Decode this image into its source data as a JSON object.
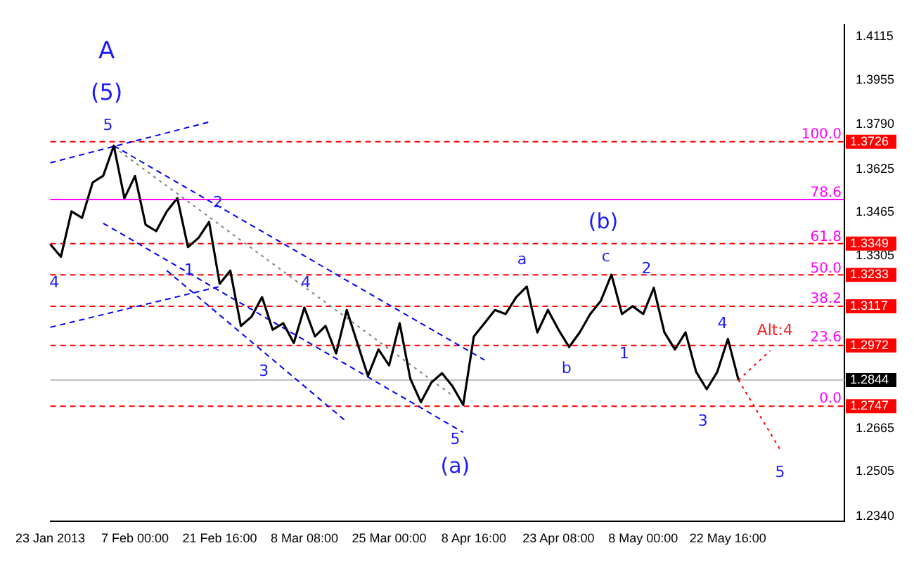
{
  "chart_data": {
    "type": "line",
    "ylim": [
      1.232,
      1.416
    ],
    "categories": [
      "23 Jan 2013",
      null,
      null,
      null,
      null,
      null,
      null,
      null,
      "7 Feb 00:00",
      null,
      null,
      null,
      null,
      null,
      null,
      null,
      "21 Feb 16:00",
      null,
      null,
      null,
      null,
      null,
      null,
      null,
      "8 Mar 08:00",
      null,
      null,
      null,
      null,
      null,
      null,
      null,
      "25 Mar 00:00",
      null,
      null,
      null,
      null,
      null,
      null,
      null,
      "8 Apr 16:00",
      null,
      null,
      null,
      null,
      null,
      null,
      null,
      "23 Apr 08:00",
      null,
      null,
      null,
      null,
      null,
      null,
      null,
      "8 May 00:00",
      null,
      null,
      null,
      null,
      null,
      null,
      null,
      "22 May 16:00",
      null,
      null,
      null,
      null,
      null,
      null,
      null,
      null,
      null,
      null,
      null
    ],
    "yticks": [
      {
        "value": 1.234,
        "label": "1.2340"
      },
      1.2505,
      1.2665,
      1.3305,
      1.3465,
      1.3625,
      {
        "value": 1.379,
        "label": "1.3790"
      },
      1.3955,
      1.4115
    ],
    "grid": false,
    "legend": false,
    "marker": "none",
    "series": [
      {
        "color": "#000000",
        "line_style": "solid",
        "values": [
          1.3346,
          1.33,
          1.3468,
          1.3444,
          1.3575,
          1.36,
          1.3711,
          1.3517,
          1.3599,
          1.3419,
          1.3395,
          1.3468,
          1.3517,
          1.3336,
          1.337,
          1.3429,
          1.32,
          1.3249,
          1.3044,
          1.3078,
          1.3151,
          1.303,
          1.3054,
          1.2981,
          1.3112,
          1.3005,
          1.3044,
          1.2942,
          1.3103,
          1.2981,
          1.2859,
          1.2957,
          1.2898,
          1.3054,
          1.2849,
          1.2762,
          1.2835,
          1.2869,
          1.282,
          1.2752,
          1.3005,
          1.3054,
          1.3103,
          1.3088,
          1.315,
          1.319,
          1.302,
          1.3103,
          1.303,
          1.2966,
          1.302,
          1.3088,
          1.3137,
          1.3234,
          1.3088,
          1.3117,
          1.3088,
          1.3185,
          1.302,
          1.2957,
          1.302,
          1.2874,
          1.281,
          1.2874,
          1.2996,
          1.2844,
          null,
          null,
          null,
          null,
          null,
          null,
          null,
          null,
          null,
          null
        ]
      },
      {
        "color": "#0000ff",
        "line_style": "dashed",
        "values": [
          1.3648,
          null,
          null,
          null,
          null,
          null,
          null,
          null,
          null,
          null,
          null,
          null,
          null,
          null,
          null,
          1.3799,
          null,
          null,
          null,
          null,
          null,
          null,
          null,
          null,
          null,
          null,
          null,
          null,
          null,
          null,
          null,
          null,
          null,
          null,
          null,
          null,
          null,
          null,
          null,
          null,
          null,
          null,
          null,
          null,
          null,
          null,
          null,
          null,
          null,
          null,
          null,
          null,
          null,
          null,
          null,
          null,
          null,
          null,
          null,
          null,
          null,
          null,
          null,
          null,
          null,
          null,
          null,
          null,
          null,
          null,
          null,
          null,
          null,
          null,
          null,
          null
        ]
      },
      {
        "color": "#0000ff",
        "line_style": "dashed",
        "values": [
          null,
          null,
          null,
          null,
          null,
          null,
          1.3711,
          null,
          null,
          null,
          null,
          null,
          null,
          null,
          null,
          null,
          null,
          null,
          null,
          null,
          null,
          null,
          null,
          null,
          null,
          null,
          null,
          null,
          null,
          null,
          null,
          null,
          null,
          null,
          null,
          null,
          null,
          null,
          null,
          null,
          null,
          1.2918,
          null,
          null,
          null,
          null,
          null,
          null,
          null,
          null,
          null,
          null,
          null,
          null,
          null,
          null,
          null,
          null,
          null,
          null,
          null,
          null,
          null,
          null,
          null,
          null,
          null,
          null,
          null,
          null,
          null,
          null,
          null,
          null,
          null,
          null
        ]
      },
      {
        "color": "#0000ff",
        "line_style": "dashed",
        "values": [
          null,
          null,
          null,
          null,
          null,
          1.3424,
          null,
          null,
          null,
          null,
          null,
          null,
          null,
          null,
          null,
          null,
          null,
          null,
          null,
          null,
          null,
          null,
          null,
          null,
          null,
          null,
          null,
          null,
          null,
          null,
          null,
          null,
          null,
          null,
          null,
          null,
          null,
          null,
          null,
          1.265,
          null,
          null,
          null,
          null,
          null,
          null,
          null,
          null,
          null,
          null,
          null,
          null,
          null,
          null,
          null,
          null,
          null,
          null,
          null,
          null,
          null,
          null,
          null,
          null,
          null,
          null,
          null,
          null,
          null,
          null,
          null,
          null,
          null,
          null,
          null,
          null
        ]
      },
      {
        "color": "#0000ff",
        "line_style": "dashed",
        "values": [
          1.3039,
          null,
          null,
          null,
          null,
          null,
          null,
          null,
          null,
          null,
          null,
          null,
          null,
          null,
          null,
          null,
          1.319,
          null,
          null,
          null,
          null,
          null,
          null,
          null,
          null,
          null,
          null,
          null,
          null,
          null,
          null,
          null,
          null,
          null,
          null,
          null,
          null,
          null,
          null,
          null,
          null,
          null,
          null,
          null,
          null,
          null,
          null,
          null,
          null,
          null,
          null,
          null,
          null,
          null,
          null,
          null,
          null,
          null,
          null,
          null,
          null,
          null,
          null,
          null,
          null,
          null,
          null,
          null,
          null,
          null,
          null,
          null,
          null,
          null,
          null,
          null
        ]
      },
      {
        "color": "#0000ff",
        "line_style": "dashed",
        "values": [
          null,
          null,
          null,
          null,
          null,
          null,
          null,
          null,
          null,
          null,
          null,
          1.3249,
          null,
          null,
          null,
          null,
          null,
          null,
          null,
          null,
          null,
          null,
          null,
          null,
          null,
          null,
          null,
          null,
          1.2689,
          null,
          null,
          null,
          null,
          null,
          null,
          null,
          null,
          null,
          null,
          null,
          null,
          null,
          null,
          null,
          null,
          null,
          null,
          null,
          null,
          null,
          null,
          null,
          null,
          null,
          null,
          null,
          null,
          null,
          null,
          null,
          null,
          null,
          null,
          null,
          null,
          null,
          null,
          null,
          null,
          null,
          null,
          null,
          null,
          null,
          null,
          null
        ]
      },
      {
        "color": "#808080",
        "line_style": "dotted",
        "values": [
          null,
          null,
          null,
          null,
          null,
          null,
          1.3706,
          null,
          null,
          null,
          null,
          null,
          null,
          null,
          null,
          null,
          null,
          null,
          null,
          null,
          null,
          null,
          null,
          null,
          null,
          null,
          null,
          null,
          null,
          null,
          null,
          null,
          null,
          null,
          null,
          null,
          null,
          null,
          1.2786,
          null,
          null,
          null,
          null,
          null,
          null,
          null,
          null,
          null,
          null,
          null,
          null,
          null,
          null,
          null,
          null,
          null,
          null,
          null,
          null,
          null,
          null,
          null,
          null,
          null,
          null,
          null,
          null,
          null,
          null,
          null,
          null,
          null,
          null,
          null,
          null,
          null
        ]
      },
      {
        "color": "#ff0000",
        "line_style": "dotted",
        "values": [
          null,
          null,
          null,
          null,
          null,
          null,
          null,
          null,
          null,
          null,
          null,
          null,
          null,
          null,
          null,
          null,
          null,
          null,
          null,
          null,
          null,
          null,
          null,
          null,
          null,
          null,
          null,
          null,
          null,
          null,
          null,
          null,
          null,
          null,
          null,
          null,
          null,
          null,
          null,
          null,
          null,
          null,
          null,
          null,
          null,
          null,
          null,
          null,
          null,
          null,
          null,
          null,
          null,
          null,
          null,
          null,
          null,
          null,
          null,
          null,
          null,
          null,
          null,
          null,
          null,
          1.2844,
          null,
          null,
          1.2952,
          null,
          null,
          null,
          null,
          null,
          null,
          null
        ]
      },
      {
        "color": "#ff0000",
        "line_style": "dotted",
        "values": [
          null,
          null,
          null,
          null,
          null,
          null,
          null,
          null,
          null,
          null,
          null,
          null,
          null,
          null,
          null,
          null,
          null,
          null,
          null,
          null,
          null,
          null,
          null,
          null,
          null,
          null,
          null,
          null,
          null,
          null,
          null,
          null,
          null,
          null,
          null,
          null,
          null,
          null,
          null,
          null,
          null,
          null,
          null,
          null,
          null,
          null,
          null,
          null,
          null,
          null,
          null,
          null,
          null,
          null,
          null,
          null,
          null,
          null,
          null,
          null,
          null,
          null,
          null,
          null,
          null,
          1.2844,
          null,
          null,
          null,
          1.2582,
          null,
          null,
          null,
          null,
          null,
          null
        ]
      }
    ],
    "ref_lines": [
      {
        "axis": "y",
        "value": 1.3726,
        "label": "1.3726",
        "color": "#ff0000",
        "line_style": "dashed"
      },
      {
        "axis": "y",
        "value": 1.3512,
        "label": null,
        "color": "#ff00ff",
        "line_style": "solid"
      },
      {
        "axis": "y",
        "value": 1.3349,
        "label": "1.3349",
        "color": "#ff0000",
        "line_style": "dashed"
      },
      {
        "axis": "y",
        "value": 1.3233,
        "label": "1.3233",
        "color": "#ff0000",
        "line_style": "dashed"
      },
      {
        "axis": "y",
        "value": 1.3117,
        "label": "1.3117",
        "color": "#ff0000",
        "line_style": "dashed"
      },
      {
        "axis": "y",
        "value": 1.2972,
        "label": "1.2972",
        "color": "#ff0000",
        "line_style": "dashed"
      },
      {
        "axis": "y",
        "value": 1.2844,
        "label": "1.2844",
        "color": "#c0c0c0",
        "line_style": "solid"
      },
      {
        "axis": "y",
        "value": 1.2747,
        "label": "1.2747",
        "color": "#ff0000",
        "line_style": "dashed"
      }
    ],
    "annotations": [
      "A",
      "(5)",
      "5",
      "2",
      "1",
      "4",
      "4",
      "3",
      "5",
      "(a)",
      "a",
      "c",
      "(b)",
      "2",
      "1",
      "b",
      "3",
      "4",
      "Alt:4",
      "5",
      "100.0",
      "78.6",
      "61.8",
      "50.0",
      "38.2",
      "23.6",
      "0.0"
    ]
  }
}
